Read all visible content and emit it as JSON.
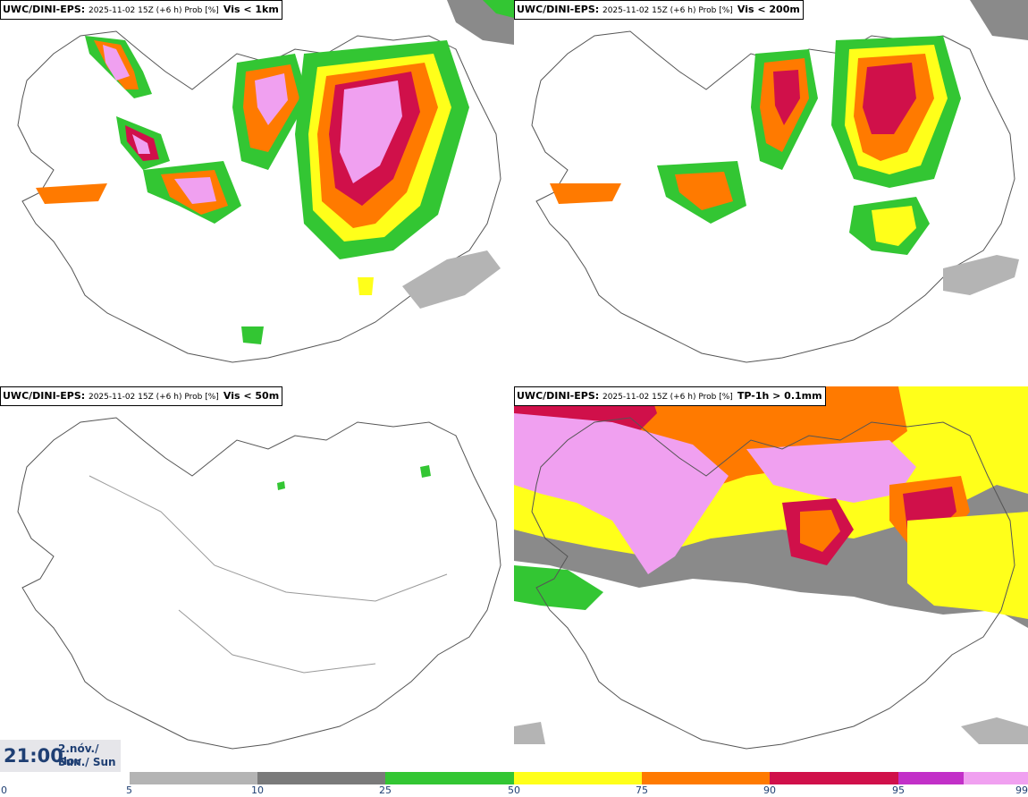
{
  "panels": [
    {
      "model": "UWC/DINI-EPS",
      "meta": "2025-11-02 15Z (+6 h) Prob [%]",
      "variable": "Vis < 1km"
    },
    {
      "model": "UWC/DINI-EPS",
      "meta": "2025-11-02 15Z (+6 h) Prob [%]",
      "variable": "Vis < 200m"
    },
    {
      "model": "UWC/DINI-EPS",
      "meta": "2025-11-02 15Z (+6 h) Prob [%]",
      "variable": "Vis < 50m"
    },
    {
      "model": "UWC/DINI-EPS",
      "meta": "2025-11-02 15Z (+6 h) Prob [%]",
      "variable": "TP-1h > 0.1mm"
    }
  ],
  "timestamp": {
    "time": "21:00",
    "date_line1": "2.nóv./ Nov",
    "date_line2": "Sun./ Sun"
  },
  "legend": {
    "ticks": [
      "0",
      "5",
      "10",
      "25",
      "50",
      "75",
      "90",
      "95",
      "99"
    ],
    "colors": [
      "#b4b4b4",
      "#7a7a7a",
      "#33c633",
      "#ffff1a",
      "#ff7a00",
      "#d0104a",
      "#c230c8",
      "#f0a0f0"
    ]
  }
}
